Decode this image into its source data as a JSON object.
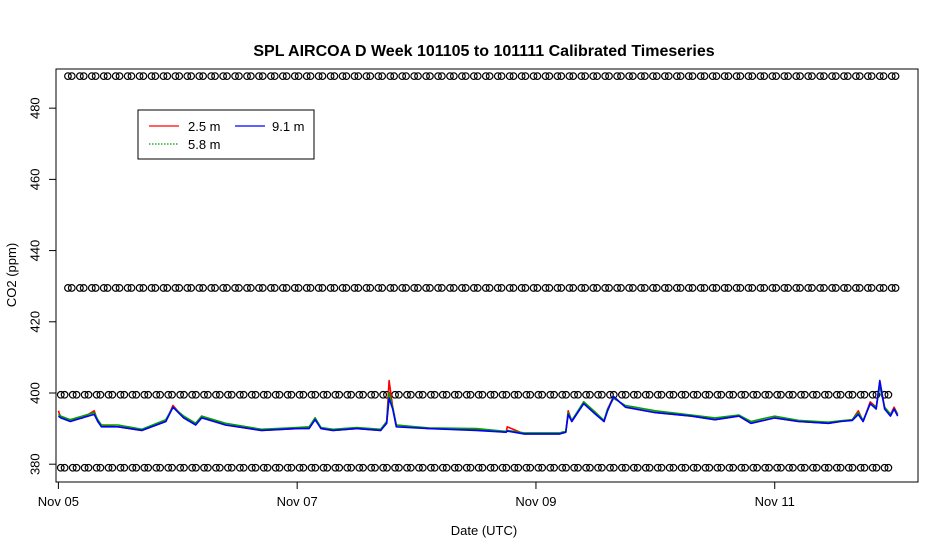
{
  "chart_data": {
    "type": "line",
    "title": "SPL AIRCOA D  Week 101105 to 101111  Calibrated Timeseries",
    "xlabel": "Date (UTC)",
    "ylabel": "CO2 (ppm)",
    "xlim": [
      -0.02,
      7.2
    ],
    "ylim": [
      375,
      491
    ],
    "x_ticks": [
      {
        "value": 0,
        "label": "Nov 05"
      },
      {
        "value": 2,
        "label": "Nov 07"
      },
      {
        "value": 4,
        "label": "Nov 09"
      },
      {
        "value": 6,
        "label": "Nov 11"
      }
    ],
    "y_ticks": [
      380,
      400,
      420,
      440,
      460,
      480
    ],
    "legend": {
      "placement": "top-left",
      "entries": [
        {
          "name": "2.5 m",
          "color": "#ff0000"
        },
        {
          "name": "5.8 m",
          "color": "#00a000"
        },
        {
          "name": "9.1 m",
          "color": "#0000ff"
        }
      ]
    },
    "series": [
      {
        "name": "2.5 m",
        "color": "#ff0000",
        "points": [
          [
            0.0,
            395
          ],
          [
            0.02,
            393
          ],
          [
            0.1,
            392.5
          ],
          [
            0.2,
            393
          ],
          [
            0.3,
            395
          ],
          [
            0.33,
            392
          ],
          [
            0.36,
            391
          ],
          [
            0.5,
            390.5
          ],
          [
            0.7,
            389.5
          ],
          [
            0.9,
            392
          ],
          [
            0.96,
            396.5
          ],
          [
            1.05,
            393
          ],
          [
            1.15,
            391.5
          ],
          [
            1.2,
            393.5
          ],
          [
            1.4,
            391
          ],
          [
            1.7,
            389.5
          ],
          [
            2.0,
            390
          ],
          [
            2.1,
            390.3
          ],
          [
            2.15,
            393
          ],
          [
            2.2,
            390
          ],
          [
            2.3,
            389.5
          ],
          [
            2.5,
            390
          ],
          [
            2.7,
            389.5
          ],
          [
            2.75,
            392
          ],
          [
            2.77,
            403.5
          ],
          [
            2.8,
            396
          ],
          [
            2.83,
            391
          ],
          [
            3.1,
            390
          ],
          [
            3.5,
            389.8
          ],
          [
            3.75,
            389
          ],
          [
            3.76,
            390.5
          ],
          [
            3.9,
            388.5
          ],
          [
            4.2,
            388.5
          ],
          [
            4.25,
            389
          ],
          [
            4.27,
            395
          ],
          [
            4.3,
            392
          ],
          [
            4.4,
            397.5
          ],
          [
            4.5,
            394.5
          ],
          [
            4.57,
            392
          ],
          [
            4.6,
            395.5
          ],
          [
            4.65,
            399
          ],
          [
            4.75,
            396
          ],
          [
            5.0,
            394.5
          ],
          [
            5.3,
            393.5
          ],
          [
            5.5,
            392.5
          ],
          [
            5.7,
            393.5
          ],
          [
            5.8,
            391.5
          ],
          [
            6.0,
            393
          ],
          [
            6.2,
            392
          ],
          [
            6.45,
            391.5
          ],
          [
            6.55,
            392
          ],
          [
            6.65,
            392.5
          ],
          [
            6.7,
            395
          ],
          [
            6.74,
            392
          ],
          [
            6.8,
            397.5
          ],
          [
            6.85,
            396
          ],
          [
            6.88,
            403
          ],
          [
            6.92,
            396
          ],
          [
            6.97,
            394
          ],
          [
            7.0,
            396
          ],
          [
            7.03,
            394
          ]
        ]
      },
      {
        "name": "5.8 m",
        "color": "#00a000",
        "points": [
          [
            0.0,
            394
          ],
          [
            0.02,
            393.5
          ],
          [
            0.1,
            392.5
          ],
          [
            0.2,
            393.5
          ],
          [
            0.3,
            394.5
          ],
          [
            0.33,
            392.5
          ],
          [
            0.36,
            391
          ],
          [
            0.5,
            391
          ],
          [
            0.7,
            389.8
          ],
          [
            0.9,
            392.5
          ],
          [
            0.96,
            396
          ],
          [
            1.05,
            393.5
          ],
          [
            1.15,
            391.5
          ],
          [
            1.2,
            393.5
          ],
          [
            1.4,
            391.5
          ],
          [
            1.7,
            389.8
          ],
          [
            2.0,
            390.3
          ],
          [
            2.1,
            390.5
          ],
          [
            2.15,
            393
          ],
          [
            2.2,
            390.3
          ],
          [
            2.3,
            389.8
          ],
          [
            2.5,
            390.3
          ],
          [
            2.7,
            389.8
          ],
          [
            2.75,
            392
          ],
          [
            2.77,
            400
          ],
          [
            2.8,
            396
          ],
          [
            2.83,
            391
          ],
          [
            3.1,
            390.2
          ],
          [
            3.5,
            390
          ],
          [
            3.75,
            389.2
          ],
          [
            3.76,
            389.5
          ],
          [
            3.9,
            388.8
          ],
          [
            4.2,
            388.8
          ],
          [
            4.25,
            389.3
          ],
          [
            4.27,
            394.5
          ],
          [
            4.3,
            392.3
          ],
          [
            4.4,
            397.5
          ],
          [
            4.5,
            394.5
          ],
          [
            4.57,
            392.3
          ],
          [
            4.6,
            395.5
          ],
          [
            4.65,
            398.5
          ],
          [
            4.75,
            396.5
          ],
          [
            5.0,
            395
          ],
          [
            5.3,
            393.8
          ],
          [
            5.5,
            393
          ],
          [
            5.7,
            393.8
          ],
          [
            5.8,
            392
          ],
          [
            6.0,
            393.5
          ],
          [
            6.2,
            392.3
          ],
          [
            6.45,
            391.8
          ],
          [
            6.55,
            392.2
          ],
          [
            6.65,
            392.5
          ],
          [
            6.7,
            394.5
          ],
          [
            6.74,
            392.3
          ],
          [
            6.8,
            397
          ],
          [
            6.85,
            396
          ],
          [
            6.88,
            402
          ],
          [
            6.92,
            396
          ],
          [
            6.97,
            394
          ],
          [
            7.0,
            395.5
          ],
          [
            7.03,
            394
          ]
        ]
      },
      {
        "name": "9.1 m",
        "color": "#0000ff",
        "points": [
          [
            0.0,
            393.5
          ],
          [
            0.02,
            393
          ],
          [
            0.1,
            392
          ],
          [
            0.2,
            393
          ],
          [
            0.3,
            394
          ],
          [
            0.33,
            392
          ],
          [
            0.36,
            390.5
          ],
          [
            0.5,
            390.5
          ],
          [
            0.7,
            389.5
          ],
          [
            0.9,
            392
          ],
          [
            0.96,
            396
          ],
          [
            1.05,
            393
          ],
          [
            1.15,
            391
          ],
          [
            1.2,
            393
          ],
          [
            1.4,
            391
          ],
          [
            1.7,
            389.5
          ],
          [
            2.0,
            390
          ],
          [
            2.1,
            390
          ],
          [
            2.15,
            392.5
          ],
          [
            2.2,
            390
          ],
          [
            2.3,
            389.5
          ],
          [
            2.5,
            390
          ],
          [
            2.7,
            389.5
          ],
          [
            2.75,
            391.5
          ],
          [
            2.77,
            398.5
          ],
          [
            2.8,
            395.5
          ],
          [
            2.83,
            390.5
          ],
          [
            3.1,
            390
          ],
          [
            3.5,
            389.5
          ],
          [
            3.75,
            389
          ],
          [
            3.76,
            389.3
          ],
          [
            3.9,
            388.5
          ],
          [
            4.2,
            388.5
          ],
          [
            4.25,
            389
          ],
          [
            4.27,
            394
          ],
          [
            4.3,
            392
          ],
          [
            4.4,
            397
          ],
          [
            4.5,
            394
          ],
          [
            4.57,
            392
          ],
          [
            4.6,
            395
          ],
          [
            4.65,
            399
          ],
          [
            4.75,
            396
          ],
          [
            5.0,
            394.5
          ],
          [
            5.3,
            393.5
          ],
          [
            5.5,
            392.5
          ],
          [
            5.7,
            393.5
          ],
          [
            5.8,
            391.5
          ],
          [
            6.0,
            393
          ],
          [
            6.2,
            392
          ],
          [
            6.45,
            391.5
          ],
          [
            6.55,
            392
          ],
          [
            6.65,
            392.3
          ],
          [
            6.7,
            394
          ],
          [
            6.74,
            392
          ],
          [
            6.8,
            397
          ],
          [
            6.85,
            395.5
          ],
          [
            6.88,
            403.5
          ],
          [
            6.92,
            395.5
          ],
          [
            6.97,
            393.5
          ],
          [
            7.0,
            395.5
          ],
          [
            7.03,
            393.5
          ]
        ]
      }
    ],
    "calibration_levels": [
      {
        "y": 379,
        "x_start": 0.02,
        "x_end": 7.0,
        "step": 0.1
      },
      {
        "y": 399.5,
        "x_start": 0.02,
        "x_end": 7.0,
        "step": 0.1
      },
      {
        "y": 429.5,
        "x_start": 0.08,
        "x_end": 7.0,
        "step": 0.1
      },
      {
        "y": 489,
        "x_start": 0.08,
        "x_end": 7.0,
        "step": 0.1
      }
    ]
  }
}
